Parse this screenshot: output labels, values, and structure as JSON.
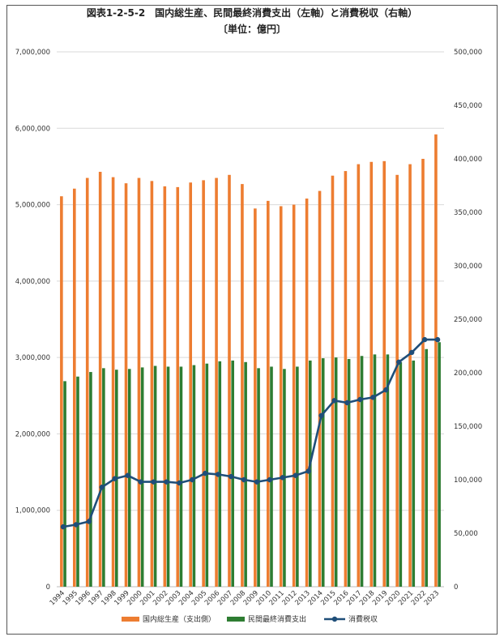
{
  "chart_data": {
    "type": "bar+line",
    "title": "図表1-2-5-2　国内総生産、民間最終消費支出（左軸）と消費税収（右軸）",
    "subtitle": "〔単位：億円〕",
    "categories": [
      "1994",
      "1995",
      "1996",
      "1997",
      "1998",
      "1999",
      "2000",
      "2001",
      "2002",
      "2003",
      "2004",
      "2005",
      "2006",
      "2007",
      "2008",
      "2009",
      "2010",
      "2011",
      "2012",
      "2013",
      "2014",
      "2015",
      "2016",
      "2017",
      "2018",
      "2019",
      "2020",
      "2021",
      "2022",
      "2023"
    ],
    "series": [
      {
        "name": "国内総生産（支出側）",
        "type": "bar",
        "axis": "left",
        "color": "#ED7D31",
        "values": [
          5110000,
          5210000,
          5350000,
          5430000,
          5360000,
          5280000,
          5350000,
          5310000,
          5240000,
          5230000,
          5290000,
          5320000,
          5350000,
          5390000,
          5270000,
          4950000,
          5050000,
          4980000,
          5000000,
          5080000,
          5180000,
          5380000,
          5440000,
          5530000,
          5560000,
          5570000,
          5390000,
          5530000,
          5600000,
          5920000
        ]
      },
      {
        "name": "民間最終消費支出",
        "type": "bar",
        "axis": "left",
        "color": "#2E7D32",
        "values": [
          2690000,
          2750000,
          2810000,
          2860000,
          2840000,
          2850000,
          2870000,
          2890000,
          2880000,
          2880000,
          2900000,
          2920000,
          2950000,
          2960000,
          2940000,
          2860000,
          2880000,
          2850000,
          2880000,
          2960000,
          2990000,
          3000000,
          2980000,
          3020000,
          3040000,
          3040000,
          2940000,
          2960000,
          3110000,
          3200000
        ]
      },
      {
        "name": "消費税収",
        "type": "line",
        "axis": "right",
        "color": "#1F4E79",
        "values": [
          56000,
          58000,
          61000,
          93000,
          101000,
          104000,
          98000,
          98000,
          98000,
          97000,
          100000,
          106000,
          105000,
          103000,
          100000,
          98000,
          100000,
          102000,
          104000,
          108000,
          160000,
          174000,
          172000,
          175000,
          177000,
          184000,
          210000,
          219000,
          231000,
          231000
        ]
      }
    ],
    "left_axis": {
      "min": 0,
      "max": 7000000,
      "step": 1000000,
      "tick_labels": [
        "0",
        "1,000,000",
        "2,000,000",
        "3,000,000",
        "4,000,000",
        "5,000,000",
        "6,000,000",
        "7,000,000"
      ]
    },
    "right_axis": {
      "min": 0,
      "max": 500000,
      "step": 50000,
      "tick_labels": [
        "0",
        "50,000",
        "100,000",
        "150,000",
        "200,000",
        "250,000",
        "300,000",
        "350,000",
        "400,000",
        "450,000",
        "500,000"
      ]
    },
    "grid": true,
    "legend_position": "bottom"
  }
}
